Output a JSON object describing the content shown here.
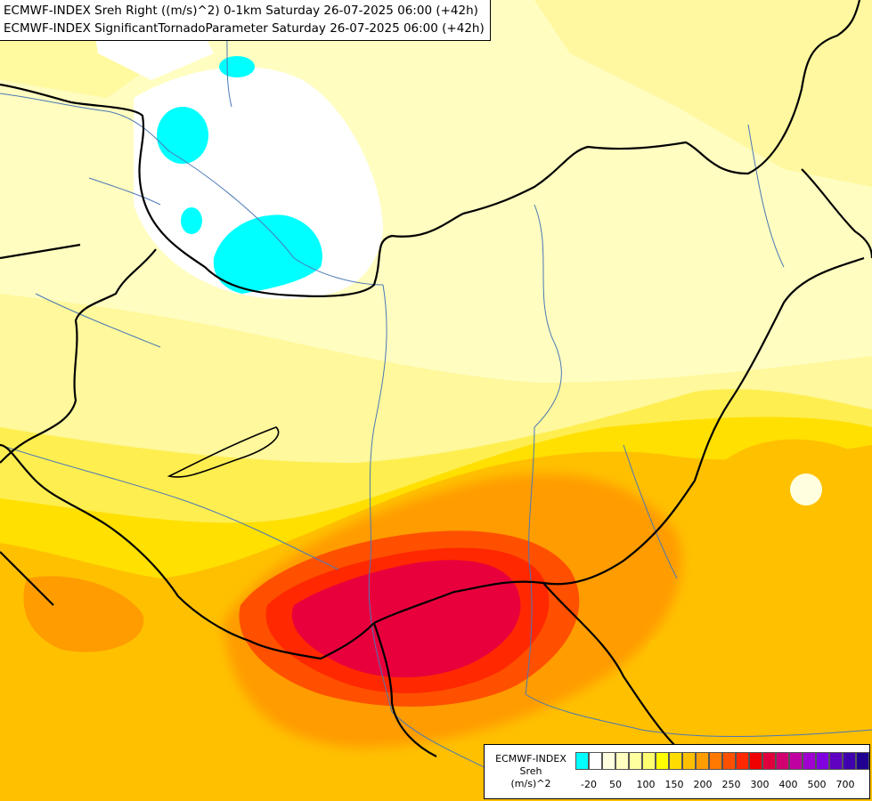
{
  "header": {
    "line1": "ECMWF-INDEX Sreh Right ((m/s)^2) 0-1km Saturday 26-07-2025 06:00 (+42h)",
    "line2": "ECMWF-INDEX SignificantTornadoParameter Saturday 26-07-2025 06:00 (+42h)"
  },
  "legend": {
    "title_line1": "ECMWF-INDEX",
    "title_line2": "Sreh",
    "title_line3": "(m/s)^2",
    "ticks": [
      "-20",
      "50",
      "100",
      "150",
      "200",
      "250",
      "300",
      "400",
      "500",
      "700"
    ],
    "colors": [
      "#00ffff",
      "#ffffff",
      "#ffffe0",
      "#ffffc0",
      "#ffffa0",
      "#ffff70",
      "#ffff00",
      "#ffdc00",
      "#ffc000",
      "#ff9c00",
      "#ff7800",
      "#ff5000",
      "#ff2800",
      "#f00000",
      "#e0003c",
      "#d00070",
      "#c000a0",
      "#a000d0",
      "#8000e0",
      "#6000c0",
      "#4000b0",
      "#200090"
    ]
  }
}
